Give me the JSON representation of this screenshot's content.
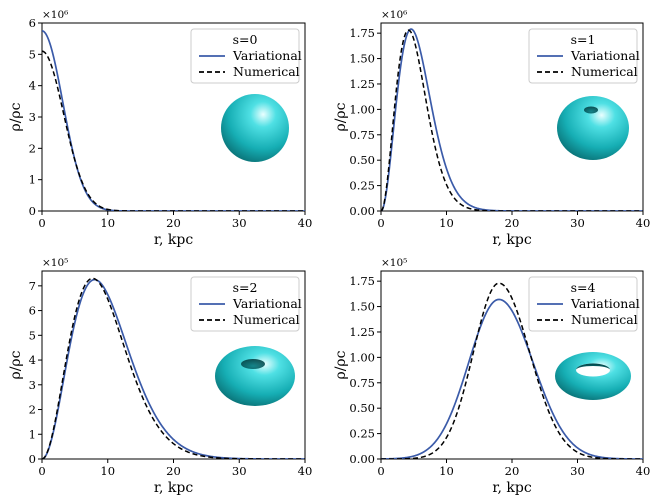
{
  "figure": {
    "colors": {
      "variational": "#3b5ba9",
      "numerical": "#000000",
      "surface": "#22c2c8"
    }
  },
  "chart_data": [
    {
      "type": "line",
      "xlabel": "r, kpc",
      "ylabel": "ρ/ρc",
      "multiplier": "×10⁶",
      "xlim": [
        0,
        40
      ],
      "ylim": [
        0,
        6
      ],
      "xticks": [
        0,
        10,
        20,
        30,
        40
      ],
      "yticks": [
        0,
        1,
        2,
        3,
        4,
        5,
        6
      ],
      "ytick_labels": [
        "0",
        "1",
        "2",
        "3",
        "4",
        "5",
        "6"
      ],
      "legend_title": "s=0",
      "legend_position": "top-right",
      "inset_icon": "sphere-icon",
      "series": [
        {
          "name": "Variational",
          "style": "solid",
          "profile": {
            "kind": "gauss",
            "amp": 5.75,
            "peak": 0,
            "sigma_left": 3.15,
            "sigma_right": 3.15
          }
        },
        {
          "name": "Numerical",
          "style": "dashed",
          "profile": {
            "kind": "gauss",
            "amp": 5.1,
            "peak": 0,
            "sigma_left": 3.3,
            "sigma_right": 3.3
          }
        }
      ]
    },
    {
      "type": "line",
      "xlabel": "r, kpc",
      "ylabel": "ρ/ρc",
      "multiplier": "×10⁶",
      "xlim": [
        0,
        40
      ],
      "ylim": [
        0,
        1.85
      ],
      "xticks": [
        0,
        10,
        20,
        30,
        40
      ],
      "yticks": [
        0,
        0.25,
        0.5,
        0.75,
        1.0,
        1.25,
        1.5,
        1.75
      ],
      "ytick_labels": [
        "0.00",
        "0.25",
        "0.50",
        "0.75",
        "1.00",
        "1.25",
        "1.50",
        "1.75"
      ],
      "legend_title": "s=1",
      "legend_position": "top-right",
      "inset_icon": "dimpled-sphere-icon",
      "series": [
        {
          "name": "Variational",
          "style": "solid",
          "profile": {
            "kind": "power",
            "amp": 1.79,
            "peak": 4.6
          }
        },
        {
          "name": "Numerical",
          "style": "dashed",
          "profile": {
            "kind": "power",
            "amp": 1.78,
            "peak": 4.2
          }
        }
      ]
    },
    {
      "type": "line",
      "xlabel": "r, kpc",
      "ylabel": "ρ/ρc",
      "multiplier": "×10⁵",
      "xlim": [
        0,
        40
      ],
      "ylim": [
        0,
        7.6
      ],
      "xticks": [
        0,
        10,
        20,
        30,
        40
      ],
      "yticks": [
        0,
        1,
        2,
        3,
        4,
        5,
        6,
        7
      ],
      "ytick_labels": [
        "0",
        "1",
        "2",
        "3",
        "4",
        "5",
        "6",
        "7"
      ],
      "legend_title": "s=2",
      "legend_position": "top-right",
      "inset_icon": "torus-dimple-icon",
      "series": [
        {
          "name": "Variational",
          "style": "solid",
          "profile": {
            "kind": "power",
            "amp": 7.25,
            "peak": 8.0
          }
        },
        {
          "name": "Numerical",
          "style": "dashed",
          "profile": {
            "kind": "power",
            "amp": 7.3,
            "peak": 7.7
          }
        }
      ]
    },
    {
      "type": "line",
      "xlabel": "r, kpc",
      "ylabel": "ρ/ρc",
      "multiplier": "×10⁵",
      "xlim": [
        0,
        40
      ],
      "ylim": [
        0,
        1.85
      ],
      "xticks": [
        0,
        10,
        20,
        30,
        40
      ],
      "yticks": [
        0,
        0.25,
        0.5,
        0.75,
        1.0,
        1.25,
        1.5,
        1.75
      ],
      "ytick_labels": [
        "0.00",
        "0.25",
        "0.50",
        "0.75",
        "1.00",
        "1.25",
        "1.50",
        "1.75"
      ],
      "legend_title": "s=4",
      "legend_position": "top-right",
      "inset_icon": "torus-icon",
      "series": [
        {
          "name": "Variational",
          "style": "solid",
          "profile": {
            "kind": "gauss",
            "amp": 1.57,
            "peak": 18.0,
            "sigma_left": 4.6,
            "sigma_right": 5.2
          }
        },
        {
          "name": "Numerical",
          "style": "dashed",
          "profile": {
            "kind": "gauss",
            "amp": 1.73,
            "peak": 18.0,
            "sigma_left": 3.9,
            "sigma_right": 4.7
          }
        }
      ]
    }
  ]
}
